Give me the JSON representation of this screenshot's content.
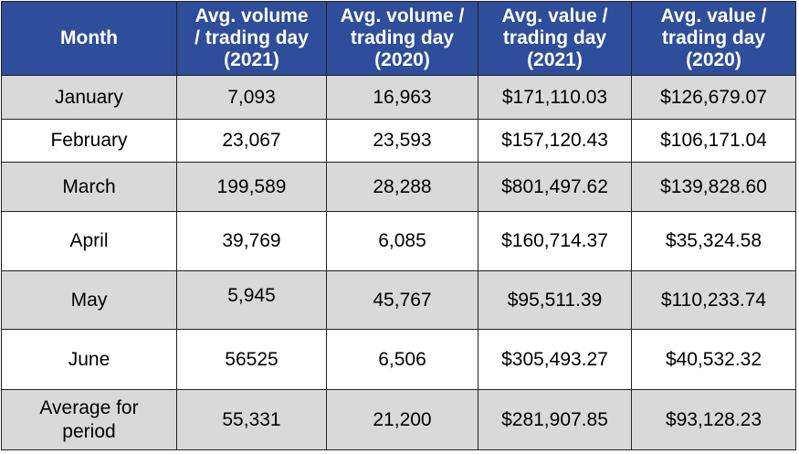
{
  "table": {
    "headers": [
      "Month",
      "Avg. volume\n/ trading day\n(2021)",
      "Avg. volume /\ntrading day\n(2020)",
      "Avg. value /\ntrading day\n(2021)",
      "Avg. value /\ntrading day\n(2020)"
    ],
    "rows": [
      {
        "month": "January",
        "vol2021": "7,093",
        "vol2020": "16,963",
        "val2021": "$171,110.03",
        "val2020": "$126,679.07"
      },
      {
        "month": "February",
        "vol2021": "23,067",
        "vol2020": "23,593",
        "val2021": "$157,120.43",
        "val2020": "$106,171.04"
      },
      {
        "month": "March",
        "vol2021": "199,589",
        "vol2020": "28,288",
        "val2021": "$801,497.62",
        "val2020": "$139,828.60"
      },
      {
        "month": "April",
        "vol2021": "39,769",
        "vol2020": "6,085",
        "val2021": "$160,714.37",
        "val2020": "$35,324.58"
      },
      {
        "month": "May",
        "vol2021": "5,945",
        "vol2020": "45,767",
        "val2021": "$95,511.39",
        "val2020": "$110,233.74"
      },
      {
        "month": "June",
        "vol2021": "56525",
        "vol2020": "6,506",
        "val2021": "$305,493.27",
        "val2020": "$40,532.32"
      },
      {
        "month": "Average for\nperiod",
        "vol2021": "55,331",
        "vol2020": "21,200",
        "val2021": "$281,907.85",
        "val2020": "$93,128.23"
      }
    ]
  },
  "colors": {
    "header_bg": "#2e4d9b",
    "header_text": "#ffffff",
    "shaded_row": "#d9d9d9",
    "plain_row": "#ffffff",
    "border": "#222222"
  }
}
